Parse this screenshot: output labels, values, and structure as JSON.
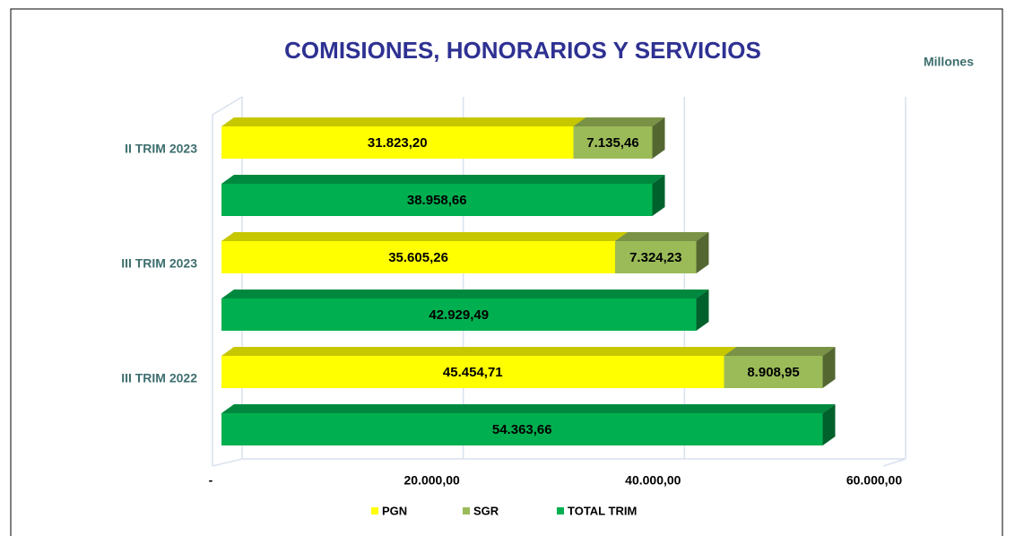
{
  "chart_data": {
    "type": "bar3d_horizontal",
    "title": "COMISIONES, HONORARIOS Y SERVICIOS",
    "unit_label": "Millones",
    "categories": [
      "II TRIM 2023",
      "III TRIM 2023",
      "III TRIM 2022"
    ],
    "series": [
      {
        "name": "PGN",
        "color": "#ffff00",
        "values": [
          31823.2,
          35605.26,
          45454.71
        ],
        "value_labels": [
          "31.823,20",
          "35.605,26",
          "45.454,71"
        ]
      },
      {
        "name": "SGR",
        "color": "#9bbb59",
        "values": [
          7135.46,
          7324.23,
          8908.95
        ],
        "value_labels": [
          "7.135,46",
          "7.324,23",
          "8.908,95"
        ]
      },
      {
        "name": "TOTAL TRIM",
        "color": "#00b050",
        "values": [
          38958.66,
          42929.49,
          54363.66
        ],
        "value_labels": [
          "38.958,66",
          "42.929,49",
          "54.363,66"
        ]
      }
    ],
    "xlim": [
      0,
      60000
    ],
    "xticks": [
      {
        "value": 0,
        "label": "-"
      },
      {
        "value": 20000,
        "label": "20.000,00"
      },
      {
        "value": 40000,
        "label": "40.000,00"
      },
      {
        "value": 60000,
        "label": "60.000,00"
      }
    ],
    "grid": true,
    "legend": "bottom"
  }
}
